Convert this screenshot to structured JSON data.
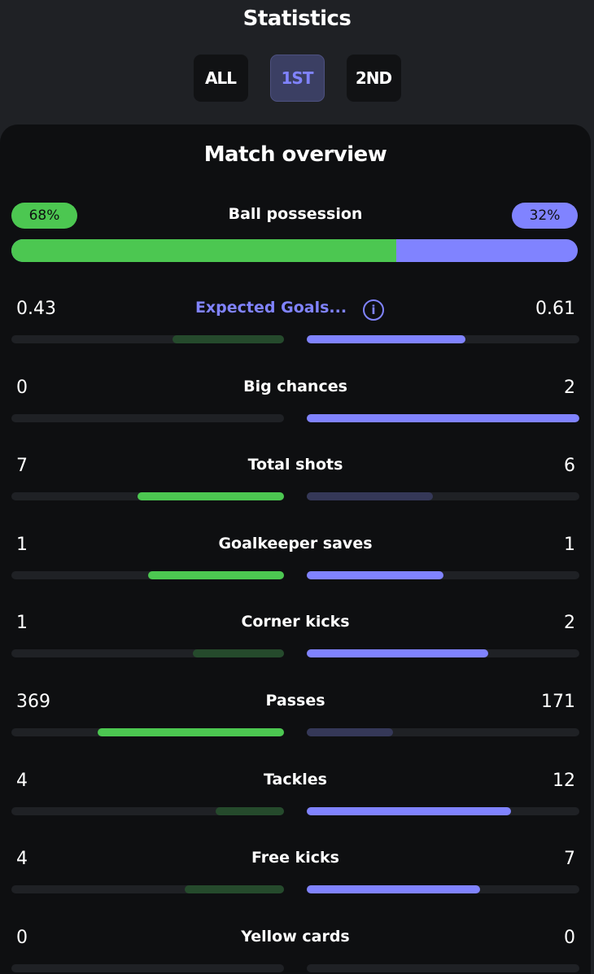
{
  "header": {
    "title": "Statistics"
  },
  "tabs": [
    {
      "label": "ALL",
      "active": false
    },
    {
      "label": "1ST",
      "active": true
    },
    {
      "label": "2ND",
      "active": false
    }
  ],
  "overview": {
    "title": "Match overview",
    "possession": {
      "label": "Ball possession",
      "home": "68%",
      "away": "32%",
      "home_fraction": 0.68
    },
    "stats": [
      {
        "label": "Expected Goals...",
        "home": "0.43",
        "away": "0.61",
        "home_value": 0.43,
        "away_value": 0.61,
        "max": 1.05,
        "has_info": true
      },
      {
        "label": "Big chances",
        "home": "0",
        "away": "2",
        "home_value": 0,
        "away_value": 2,
        "max": 2
      },
      {
        "label": "Total shots",
        "home": "7",
        "away": "6",
        "home_value": 7,
        "away_value": 6,
        "max": 13
      },
      {
        "label": "Goalkeeper saves",
        "home": "1",
        "away": "1",
        "home_value": 1,
        "away_value": 1,
        "max": 2
      },
      {
        "label": "Corner kicks",
        "home": "1",
        "away": "2",
        "home_value": 1,
        "away_value": 2,
        "max": 3
      },
      {
        "label": "Passes",
        "home": "369",
        "away": "171",
        "home_value": 369,
        "away_value": 171,
        "max": 540
      },
      {
        "label": "Tackles",
        "home": "4",
        "away": "12",
        "home_value": 4,
        "away_value": 12,
        "max": 16
      },
      {
        "label": "Free kicks",
        "home": "4",
        "away": "7",
        "home_value": 4,
        "away_value": 7,
        "max": 11
      },
      {
        "label": "Yellow cards",
        "home": "0",
        "away": "0",
        "home_value": 0,
        "away_value": 0,
        "max": 0
      }
    ]
  },
  "colors": {
    "home": "#4cc751",
    "home_dim": "#254a2c",
    "away": "#8083ff",
    "away_dim": "#353858",
    "track": "#1f2125"
  }
}
